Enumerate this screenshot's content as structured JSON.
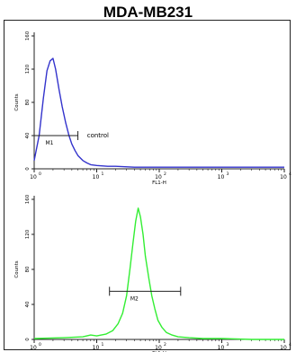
{
  "figure": {
    "title": "MDA-MB231"
  },
  "colors": {
    "control": "#3333cc",
    "sample": "#33ee33",
    "axis": "#222222"
  },
  "chart_data": [
    {
      "type": "line",
      "title": "",
      "xlabel": "FL1-H",
      "ylabel": "Counts",
      "xscale": "log",
      "xlim": [
        1,
        10000
      ],
      "ylim": [
        0,
        160
      ],
      "xticks": [
        1,
        10,
        100,
        1000,
        10000
      ],
      "xtick_labels": [
        "10",
        "10",
        "10",
        "10",
        "10"
      ],
      "xtick_exponents": [
        "0",
        "1",
        "2",
        "3",
        "4"
      ],
      "yticks": [
        0,
        40,
        80,
        120,
        160
      ],
      "ytick_labels": [
        "0",
        "40",
        "80",
        "120",
        "160"
      ],
      "series": [
        {
          "name": "control",
          "color": "#3333cc",
          "x": [
            1.0,
            1.2,
            1.4,
            1.6,
            1.8,
            2.0,
            2.2,
            2.5,
            2.8,
            3.2,
            3.6,
            4.0,
            4.5,
            5.0,
            6.0,
            7.0,
            8.0,
            10,
            15,
            20,
            40,
            100,
            300,
            1000,
            3000,
            10000
          ],
          "y": [
            10,
            40,
            85,
            118,
            130,
            133,
            120,
            95,
            75,
            55,
            40,
            30,
            22,
            16,
            10,
            7,
            5,
            4,
            3,
            3,
            2,
            2,
            2,
            2,
            2,
            2
          ]
        }
      ],
      "annotations": [
        {
          "type": "gate",
          "label": "M1",
          "x_start": 1.0,
          "x_end": 5.0,
          "y": 40
        },
        {
          "type": "text",
          "label": "control",
          "x": 7.0,
          "y": 40
        }
      ]
    },
    {
      "type": "line",
      "title": "",
      "xlabel": "FL1-H",
      "ylabel": "Counts",
      "xscale": "log",
      "xlim": [
        1,
        10000
      ],
      "ylim": [
        0,
        160
      ],
      "xticks": [
        1,
        10,
        100,
        1000,
        10000
      ],
      "xtick_labels": [
        "10",
        "10",
        "10",
        "10",
        "10"
      ],
      "xtick_exponents": [
        "0",
        "1",
        "2",
        "3",
        "4"
      ],
      "yticks": [
        0,
        40,
        80,
        120,
        160
      ],
      "ytick_labels": [
        "0",
        "40",
        "80",
        "120",
        "160"
      ],
      "series": [
        {
          "name": "",
          "color": "#33ee33",
          "x": [
            1,
            3,
            6,
            8,
            10,
            14,
            18,
            22,
            26,
            30,
            34,
            38,
            42,
            46,
            50,
            55,
            60,
            68,
            76,
            85,
            95,
            110,
            130,
            160,
            200,
            300,
            500,
            1000,
            3000,
            10000
          ],
          "y": [
            1,
            2,
            3,
            5,
            4,
            6,
            10,
            18,
            30,
            50,
            80,
            110,
            135,
            150,
            140,
            120,
            95,
            70,
            50,
            35,
            22,
            14,
            8,
            5,
            3,
            2,
            1,
            1,
            0,
            0
          ]
        }
      ],
      "annotations": [
        {
          "type": "gate",
          "label": "M2",
          "x_start": 16,
          "x_end": 220,
          "y": 55
        }
      ]
    }
  ]
}
